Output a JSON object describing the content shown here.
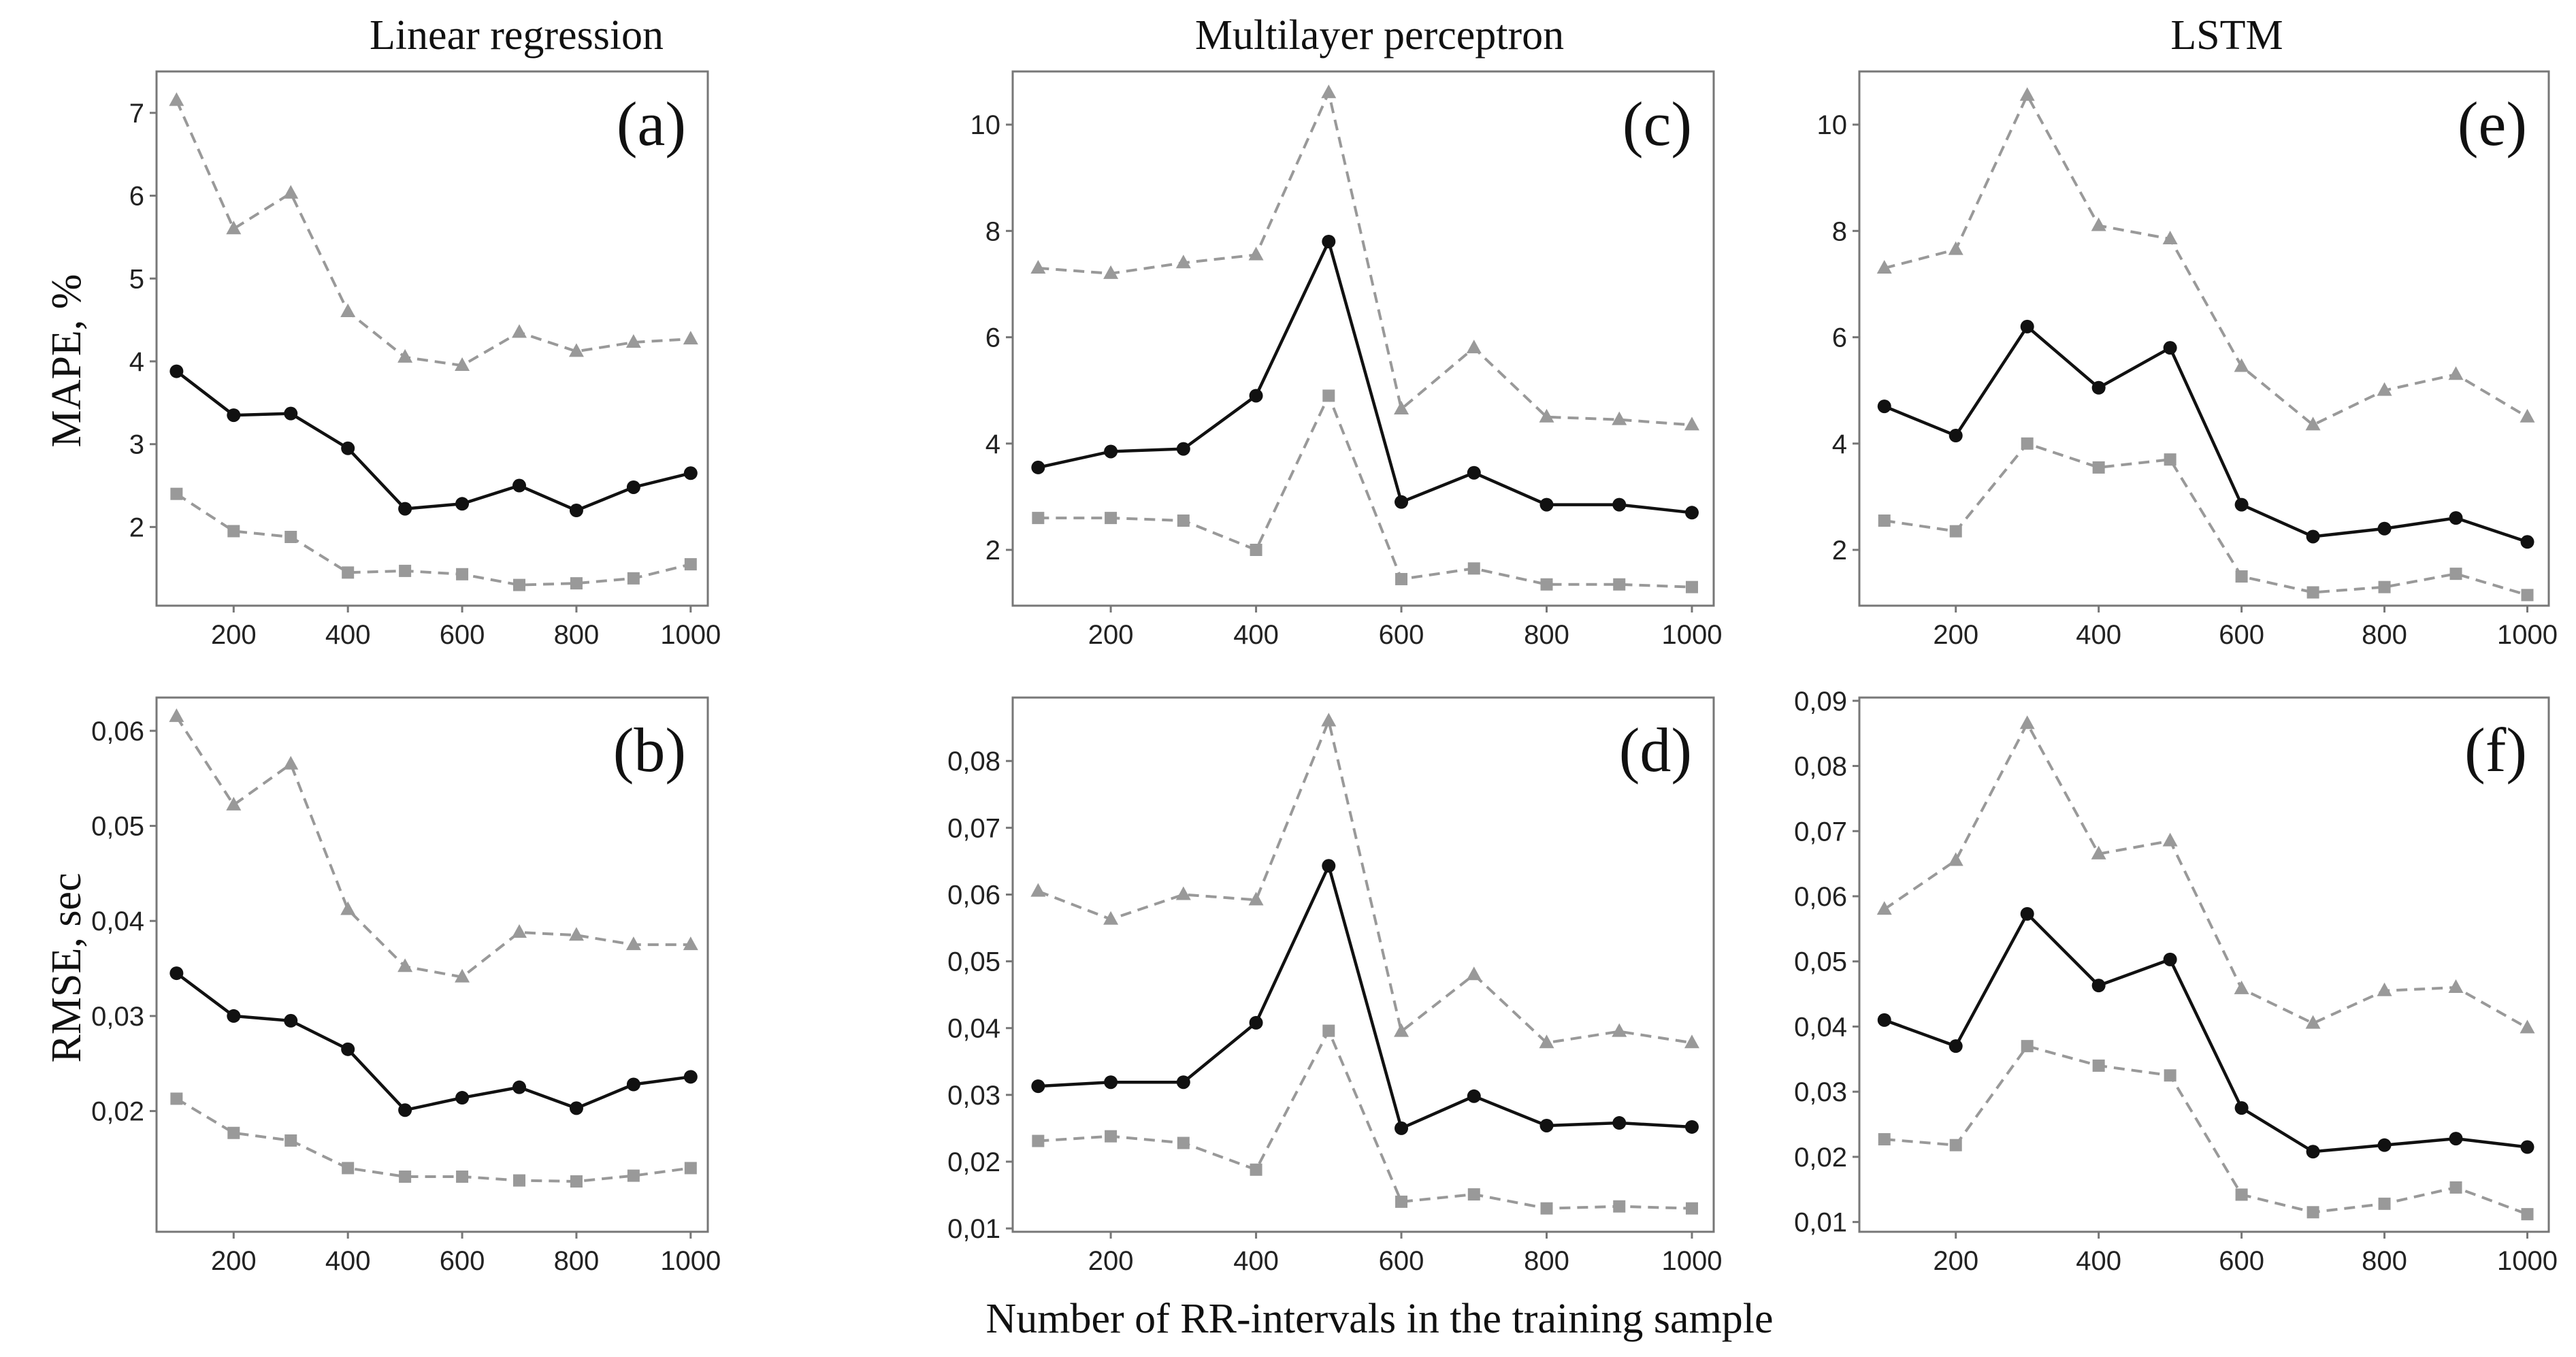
{
  "figure": {
    "column_titles": [
      "Linear regression",
      "Multilayer perceptron",
      "LSTM"
    ],
    "row_ylabels": [
      "MAPE, %",
      "RMSE, sec"
    ],
    "xlabel": "Number of RR-intervals in the training sample"
  },
  "colors": {
    "mean": "#111111",
    "bounds": "#999999",
    "frame": "#777777"
  },
  "chart_data": [
    {
      "id": "a",
      "panel_label": "(a)",
      "type": "line",
      "x": [
        100,
        200,
        300,
        400,
        500,
        600,
        700,
        800,
        900,
        1000
      ],
      "xticks": [
        200,
        400,
        600,
        800,
        1000
      ],
      "xtick_labels": [
        "200",
        "400",
        "600",
        "800",
        "1000"
      ],
      "xlim": [
        65,
        1030
      ],
      "ylim": [
        1.05,
        7.5
      ],
      "yticks": [
        2,
        3,
        4,
        5,
        6,
        7
      ],
      "ytick_labels": [
        "2",
        "3",
        "4",
        "5",
        "6",
        "7"
      ],
      "series": [
        {
          "name": "upper",
          "marker": "triangle",
          "values": [
            7.15,
            5.6,
            6.03,
            4.6,
            4.05,
            3.95,
            4.35,
            4.12,
            4.23,
            4.27
          ]
        },
        {
          "name": "mean",
          "marker": "circle",
          "values": [
            3.88,
            3.35,
            3.37,
            2.95,
            2.22,
            2.28,
            2.5,
            2.2,
            2.48,
            2.65
          ]
        },
        {
          "name": "lower",
          "marker": "square",
          "values": [
            2.4,
            1.95,
            1.88,
            1.45,
            1.47,
            1.43,
            1.3,
            1.32,
            1.38,
            1.55
          ]
        }
      ]
    },
    {
      "id": "b",
      "panel_label": "(b)",
      "type": "line",
      "x": [
        100,
        200,
        300,
        400,
        500,
        600,
        700,
        800,
        900,
        1000
      ],
      "xticks": [
        200,
        400,
        600,
        800,
        1000
      ],
      "xtick_labels": [
        "200",
        "400",
        "600",
        "800",
        "1000"
      ],
      "xlim": [
        65,
        1030
      ],
      "ylim": [
        0.0073,
        0.0635
      ],
      "yticks": [
        0.02,
        0.03,
        0.04,
        0.05,
        0.06
      ],
      "ytick_labels": [
        "0,02",
        "0,03",
        "0,04",
        "0,05",
        "0,06"
      ],
      "series": [
        {
          "name": "upper",
          "marker": "triangle",
          "values": [
            0.0615,
            0.0522,
            0.0565,
            0.0412,
            0.0352,
            0.0341,
            0.0388,
            0.0385,
            0.0375,
            0.0375
          ]
        },
        {
          "name": "mean",
          "marker": "circle",
          "values": [
            0.0345,
            0.03,
            0.0295,
            0.0265,
            0.0201,
            0.0214,
            0.0225,
            0.0203,
            0.0228,
            0.0236
          ]
        },
        {
          "name": "lower",
          "marker": "square",
          "values": [
            0.0213,
            0.0177,
            0.0169,
            0.014,
            0.0131,
            0.0131,
            0.0127,
            0.0126,
            0.0132,
            0.014
          ]
        }
      ]
    },
    {
      "id": "c",
      "panel_label": "(c)",
      "type": "line",
      "x": [
        100,
        200,
        300,
        400,
        500,
        600,
        700,
        800,
        900,
        1000
      ],
      "xticks": [
        200,
        400,
        600,
        800,
        1000
      ],
      "xtick_labels": [
        "200",
        "400",
        "600",
        "800",
        "1000"
      ],
      "xlim": [
        65,
        1030
      ],
      "ylim": [
        0.95,
        11.0
      ],
      "yticks": [
        2,
        4,
        6,
        8,
        10
      ],
      "ytick_labels": [
        "2",
        "4",
        "6",
        "8",
        "10"
      ],
      "series": [
        {
          "name": "upper",
          "marker": "triangle",
          "values": [
            7.3,
            7.2,
            7.4,
            7.55,
            10.6,
            4.65,
            5.8,
            4.5,
            4.45,
            4.35
          ]
        },
        {
          "name": "mean",
          "marker": "circle",
          "values": [
            3.55,
            3.85,
            3.9,
            4.9,
            7.8,
            2.9,
            3.45,
            2.85,
            2.85,
            2.7
          ]
        },
        {
          "name": "lower",
          "marker": "square",
          "values": [
            2.6,
            2.6,
            2.55,
            2.0,
            4.9,
            1.45,
            1.65,
            1.35,
            1.35,
            1.3
          ]
        }
      ]
    },
    {
      "id": "d",
      "panel_label": "(d)",
      "type": "line",
      "x": [
        100,
        200,
        300,
        400,
        500,
        600,
        700,
        800,
        900,
        1000
      ],
      "xticks": [
        200,
        400,
        600,
        800,
        1000
      ],
      "xtick_labels": [
        "200",
        "400",
        "600",
        "800",
        "1000"
      ],
      "xlim": [
        65,
        1030
      ],
      "ylim": [
        0.0095,
        0.0895
      ],
      "yticks": [
        0.01,
        0.02,
        0.03,
        0.04,
        0.05,
        0.06,
        0.07,
        0.08
      ],
      "ytick_labels": [
        "0,01",
        "0,02",
        "0,03",
        "0,04",
        "0,05",
        "0,06",
        "0,07",
        "0,08"
      ],
      "series": [
        {
          "name": "upper",
          "marker": "triangle",
          "values": [
            0.0605,
            0.0563,
            0.06,
            0.0592,
            0.086,
            0.0395,
            0.048,
            0.0378,
            0.0395,
            0.0378
          ]
        },
        {
          "name": "mean",
          "marker": "circle",
          "values": [
            0.0313,
            0.0319,
            0.0319,
            0.0408,
            0.0643,
            0.025,
            0.0298,
            0.0254,
            0.0258,
            0.0252
          ]
        },
        {
          "name": "lower",
          "marker": "square",
          "values": [
            0.0231,
            0.0238,
            0.0228,
            0.0188,
            0.0396,
            0.014,
            0.0151,
            0.013,
            0.0133,
            0.013
          ]
        }
      ]
    },
    {
      "id": "e",
      "panel_label": "(e)",
      "type": "line",
      "x": [
        100,
        200,
        300,
        400,
        500,
        600,
        700,
        800,
        900,
        1000
      ],
      "xticks": [
        200,
        400,
        600,
        800,
        1000
      ],
      "xtick_labels": [
        "200",
        "400",
        "600",
        "800",
        "1000"
      ],
      "xlim": [
        65,
        1030
      ],
      "ylim": [
        0.95,
        11.0
      ],
      "yticks": [
        2,
        4,
        6,
        8,
        10
      ],
      "ytick_labels": [
        "2",
        "4",
        "6",
        "8",
        "10"
      ],
      "series": [
        {
          "name": "upper",
          "marker": "triangle",
          "values": [
            7.3,
            7.65,
            10.55,
            8.1,
            7.85,
            5.45,
            4.35,
            5.0,
            5.3,
            4.5
          ]
        },
        {
          "name": "mean",
          "marker": "circle",
          "values": [
            4.7,
            4.15,
            6.2,
            5.05,
            5.8,
            2.85,
            2.25,
            2.4,
            2.6,
            2.15
          ]
        },
        {
          "name": "lower",
          "marker": "square",
          "values": [
            2.55,
            2.35,
            4.0,
            3.55,
            3.7,
            1.5,
            1.2,
            1.3,
            1.55,
            1.15
          ]
        }
      ]
    },
    {
      "id": "f",
      "panel_label": "(f)",
      "type": "line",
      "x": [
        100,
        200,
        300,
        400,
        500,
        600,
        700,
        800,
        900,
        1000
      ],
      "xticks": [
        200,
        400,
        600,
        800,
        1000
      ],
      "xtick_labels": [
        "200",
        "400",
        "600",
        "800",
        "1000"
      ],
      "xlim": [
        65,
        1030
      ],
      "ylim": [
        0.0085,
        0.0905
      ],
      "yticks": [
        0.01,
        0.02,
        0.03,
        0.04,
        0.05,
        0.06,
        0.07,
        0.08,
        0.09
      ],
      "ytick_labels": [
        "0,01",
        "0,02",
        "0,03",
        "0,04",
        "0,05",
        "0,06",
        "0,07",
        "0,08",
        "0,09"
      ],
      "series": [
        {
          "name": "upper",
          "marker": "triangle",
          "values": [
            0.058,
            0.0655,
            0.0865,
            0.0665,
            0.0685,
            0.0458,
            0.0405,
            0.0455,
            0.046,
            0.0398
          ]
        },
        {
          "name": "mean",
          "marker": "circle",
          "values": [
            0.041,
            0.037,
            0.0573,
            0.0463,
            0.0503,
            0.0275,
            0.0208,
            0.0218,
            0.0228,
            0.0215
          ]
        },
        {
          "name": "lower",
          "marker": "square",
          "values": [
            0.0227,
            0.0218,
            0.037,
            0.034,
            0.0325,
            0.0142,
            0.0115,
            0.0128,
            0.0153,
            0.0112
          ]
        }
      ]
    }
  ]
}
